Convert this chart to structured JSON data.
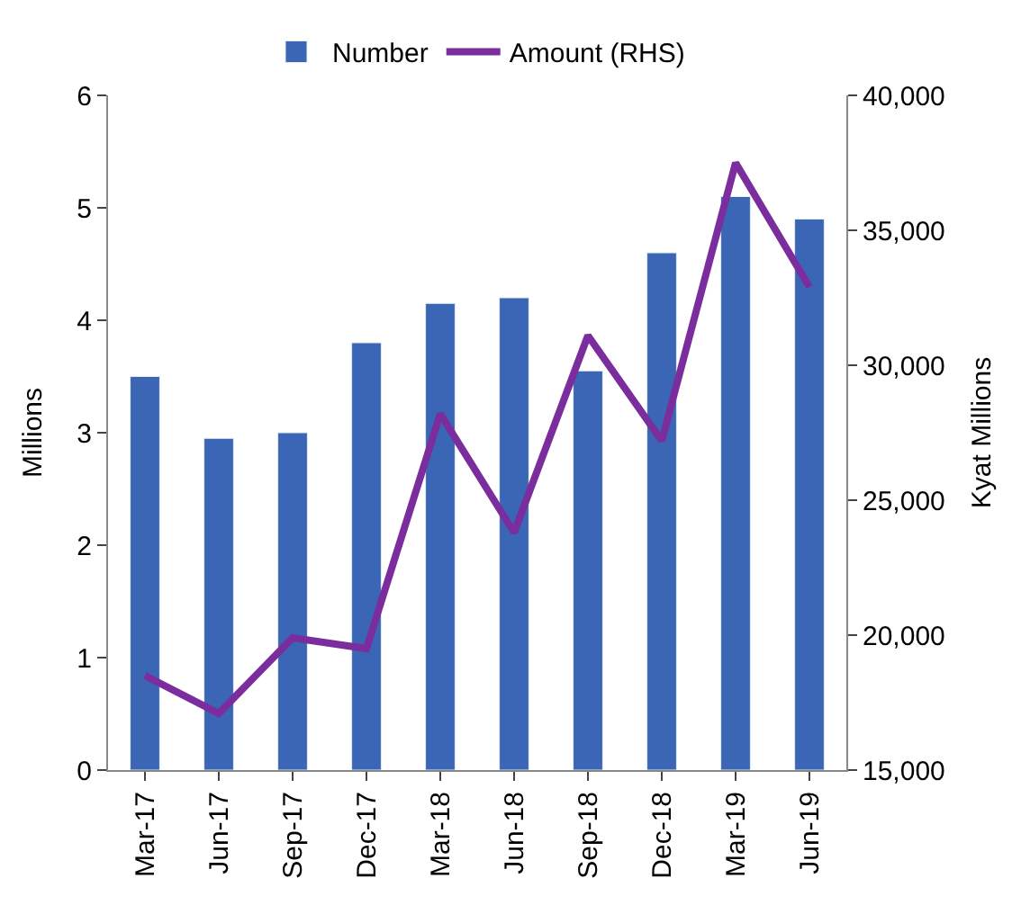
{
  "chart_data": {
    "type": "bar",
    "ylabel": "Millions",
    "y2label": "Kyat Millions",
    "categories": [
      "Mar-17",
      "Jun-17",
      "Sep-17",
      "Dec-17",
      "Mar-18",
      "Jun-18",
      "Sep-18",
      "Dec-18",
      "Mar-19",
      "Jun-19"
    ],
    "series": [
      {
        "name": "Number",
        "color": "#3a66b5",
        "values": [
          3.5,
          2.95,
          3.0,
          3.8,
          4.15,
          4.2,
          3.55,
          4.6,
          5.1,
          4.9
        ]
      },
      {
        "name": "Amount (RHS)",
        "type": "line",
        "axis": "y2",
        "color": "#7b2d9e",
        "marker": "none",
        "values": [
          18500,
          17100,
          19900,
          19500,
          28200,
          23800,
          31100,
          27200,
          37500,
          32900
        ]
      }
    ],
    "ylim": [
      0,
      6
    ],
    "yticks": [
      0,
      1,
      2,
      3,
      4,
      5,
      6
    ],
    "y2lim": [
      15000,
      40000
    ],
    "y2ticks": [
      {
        "value": 15000,
        "label": "15,000"
      },
      {
        "value": 20000,
        "label": "20,000"
      },
      {
        "value": 25000,
        "label": "25,000"
      },
      {
        "value": 30000,
        "label": "30,000"
      },
      {
        "value": 35000,
        "label": "35,000"
      },
      {
        "value": 40000,
        "label": "40,000"
      }
    ],
    "legend": "top"
  }
}
